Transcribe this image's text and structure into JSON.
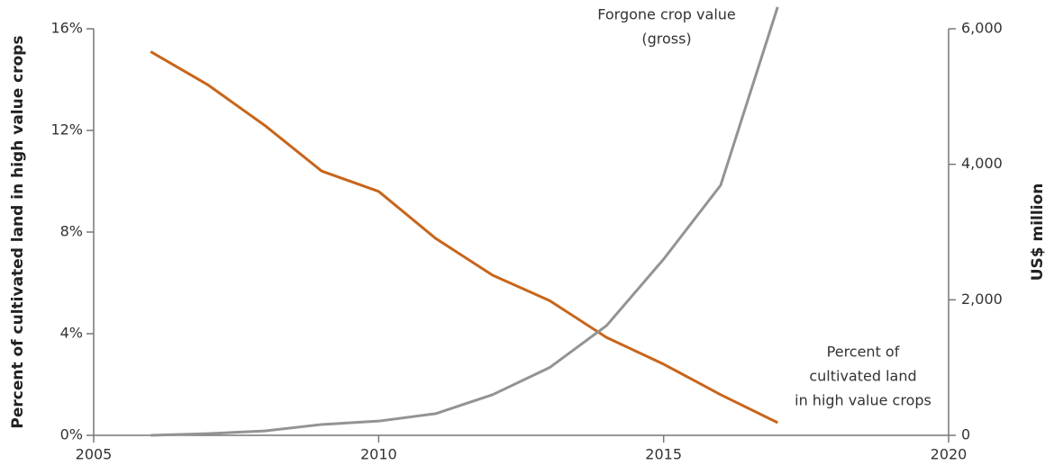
{
  "chart_data": {
    "type": "line",
    "y_label": "Percent of cultivated land in high value crops",
    "y2_label": "US$ million",
    "x": [
      2006,
      2007,
      2008,
      2009,
      2010,
      2011,
      2012,
      2013,
      2014,
      2015,
      2016,
      2017
    ],
    "series": [
      {
        "name": "Percent of cultivated land in high value crops",
        "color": "#c8651b",
        "axis": "y",
        "values": [
          15.1,
          13.8,
          12.2,
          10.4,
          9.6,
          7.75,
          6.3,
          5.3,
          3.85,
          2.8,
          1.6,
          0.5
        ]
      },
      {
        "name": "Forgone crop value (gross)",
        "color": "#939393",
        "axis": "y2",
        "values": [
          0,
          25,
          65,
          160,
          210,
          320,
          600,
          1000,
          1620,
          2600,
          3690,
          6320
        ]
      }
    ],
    "annotations": [
      [
        "Forgone crop value",
        "(gross)"
      ],
      [
        "Percent of",
        "cultivated land",
        "in high value crops"
      ]
    ],
    "xlim": [
      2005,
      2020
    ],
    "xticks": [
      2005,
      2010,
      2015,
      2020
    ],
    "ylim": [
      0,
      16
    ],
    "yticks": [
      {
        "value": 0,
        "label": "0%"
      },
      {
        "value": 4,
        "label": "4%"
      },
      {
        "value": 8,
        "label": "8%"
      },
      {
        "value": 12,
        "label": "12%"
      },
      {
        "value": 16,
        "label": "16%"
      }
    ],
    "y2lim": [
      0,
      6000
    ],
    "y2ticks": [
      0,
      {
        "value": 2000,
        "label": "2,000"
      },
      {
        "value": 4000,
        "label": "4,000"
      },
      {
        "value": 6000,
        "label": "6,000"
      }
    ],
    "grid": false
  }
}
